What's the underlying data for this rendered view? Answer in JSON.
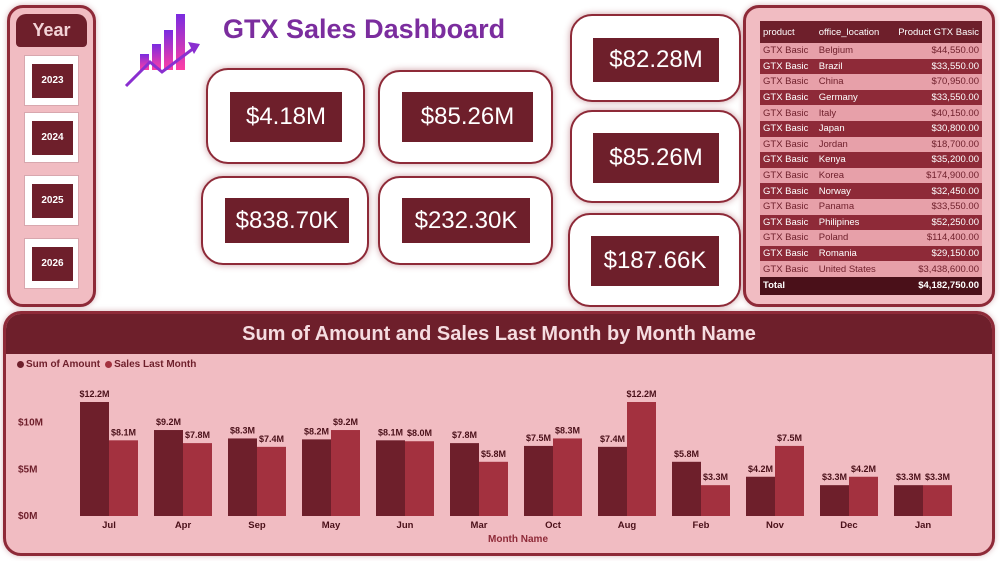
{
  "dashboard": {
    "title": "GTX Sales Dashboard",
    "logo_icon": "rising-bar-chart-icon"
  },
  "year_slicer": {
    "title": "Year",
    "options": [
      "2023",
      "2024",
      "2025",
      "2026"
    ]
  },
  "kpis": [
    "$4.18M",
    "$85.26M",
    "$838.70K",
    "$232.30K",
    "$82.28M",
    "$85.26M",
    "$187.66K"
  ],
  "table": {
    "columns": [
      "product",
      "office_location",
      "Product GTX Basic"
    ],
    "rows": [
      [
        "GTX Basic",
        "Belgium",
        "$44,550.00"
      ],
      [
        "GTX Basic",
        "Brazil",
        "$33,550.00"
      ],
      [
        "GTX Basic",
        "China",
        "$70,950.00"
      ],
      [
        "GTX Basic",
        "Germany",
        "$33,550.00"
      ],
      [
        "GTX Basic",
        "Italy",
        "$40,150.00"
      ],
      [
        "GTX Basic",
        "Japan",
        "$30,800.00"
      ],
      [
        "GTX Basic",
        "Jordan",
        "$18,700.00"
      ],
      [
        "GTX Basic",
        "Kenya",
        "$35,200.00"
      ],
      [
        "GTX Basic",
        "Korea",
        "$174,900.00"
      ],
      [
        "GTX Basic",
        "Norway",
        "$32,450.00"
      ],
      [
        "GTX Basic",
        "Panama",
        "$33,550.00"
      ],
      [
        "GTX Basic",
        "Philipines",
        "$52,250.00"
      ],
      [
        "GTX Basic",
        "Poland",
        "$114,400.00"
      ],
      [
        "GTX Basic",
        "Romania",
        "$29,150.00"
      ],
      [
        "GTX Basic",
        "United States",
        "$3,438,600.00"
      ]
    ],
    "total_label": "Total",
    "total_value": "$4,182,750.00"
  },
  "colors": {
    "sum_of_amount": "#6e1f2b",
    "sales_last_month": "#a3313f",
    "panel_bg": "#f1bcc2",
    "title": "#7b2d9e"
  },
  "chart_data": {
    "type": "bar",
    "title": "Sum of Amount and Sales Last Month by Month Name",
    "xlabel": "Month Name",
    "ylabel": "",
    "categories": [
      "Jul",
      "Apr",
      "Sep",
      "May",
      "Jun",
      "Mar",
      "Oct",
      "Aug",
      "Feb",
      "Nov",
      "Dec",
      "Jan"
    ],
    "series": [
      {
        "name": "Sum of Amount",
        "values": [
          12.2,
          9.2,
          8.3,
          8.2,
          8.1,
          7.8,
          7.5,
          7.4,
          5.8,
          4.2,
          3.3,
          3.3
        ],
        "labels": [
          "$12.2M",
          "$9.2M",
          "$8.3M",
          "$8.2M",
          "$8.1M",
          "$7.8M",
          "$7.5M",
          "$7.4M",
          "$5.8M",
          "$4.2M",
          "$3.3M",
          "$3.3M"
        ]
      },
      {
        "name": "Sales Last Month",
        "values": [
          8.1,
          7.8,
          7.4,
          9.2,
          8.0,
          5.8,
          8.3,
          12.2,
          3.3,
          7.5,
          4.2,
          3.3
        ],
        "labels": [
          "$8.1M",
          "$7.8M",
          "$7.4M",
          "$9.2M",
          "$8.0M",
          "$5.8M",
          "$8.3M",
          "$12.2M",
          "$3.3M",
          "$7.5M",
          "$4.2M",
          "$3.3M"
        ]
      }
    ],
    "yticks": [
      0,
      5,
      10
    ],
    "ytick_labels": [
      "$0M",
      "$5M",
      "$10M"
    ],
    "ylim": [
      0,
      12.2
    ],
    "legend_position": "top-left",
    "grid": false
  }
}
